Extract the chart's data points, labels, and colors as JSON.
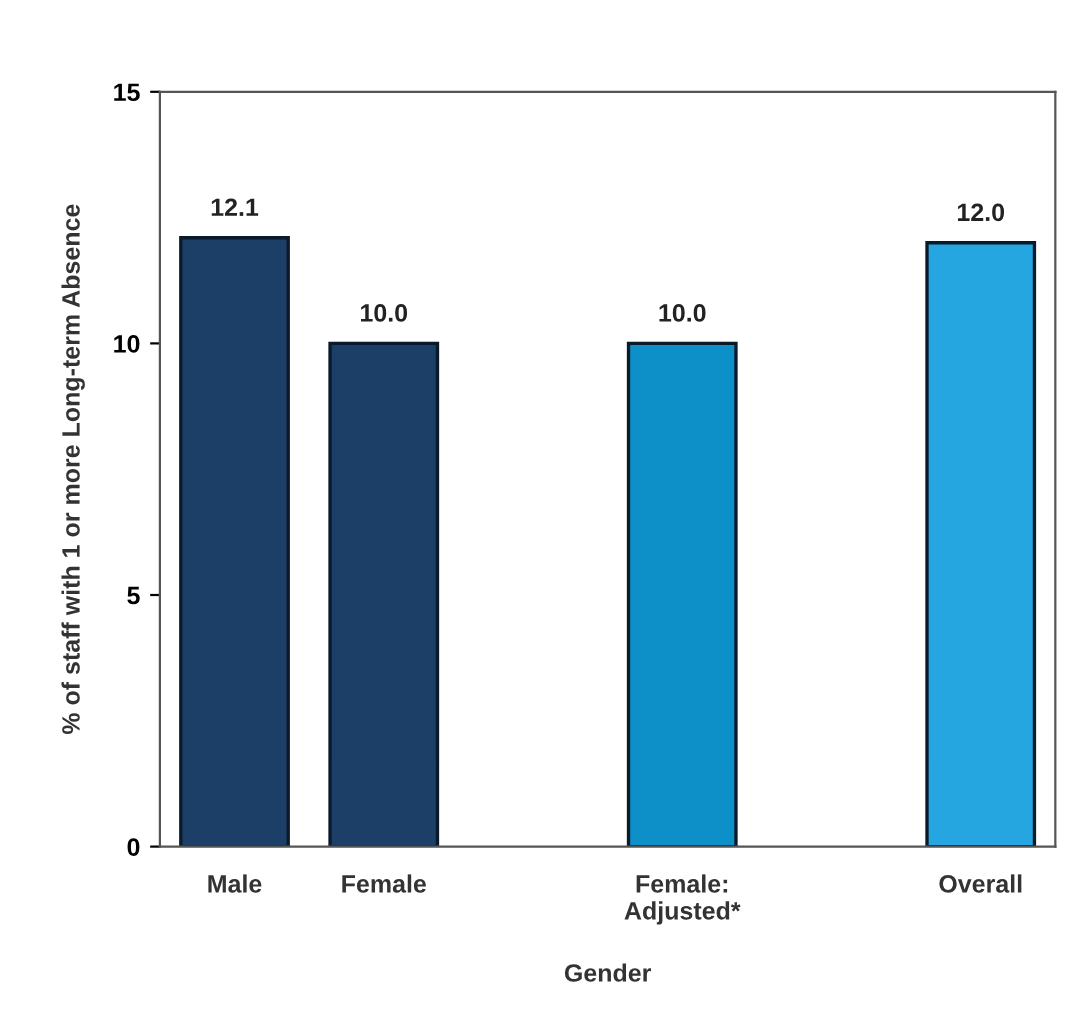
{
  "chart_data": {
    "type": "bar",
    "categories": [
      "Male",
      "Female",
      null,
      "Female:\nAdjusted*",
      null,
      "Overall"
    ],
    "values": [
      12.1,
      10.0,
      null,
      10.0,
      null,
      12.0
    ],
    "colors": [
      "#1b3f66",
      "#1b3f66",
      null,
      "#0d8fc8",
      null,
      "#25a6e0"
    ],
    "value_labels": [
      "12.1",
      "10.0",
      null,
      "10.0",
      null,
      "12.0"
    ],
    "xlabel": "Gender",
    "ylabel": "% of staff with 1 or more Long-term Absence",
    "ylim": [
      0,
      15
    ],
    "yticks": [
      0,
      5,
      10,
      15
    ],
    "grid": false,
    "legend": false
  }
}
